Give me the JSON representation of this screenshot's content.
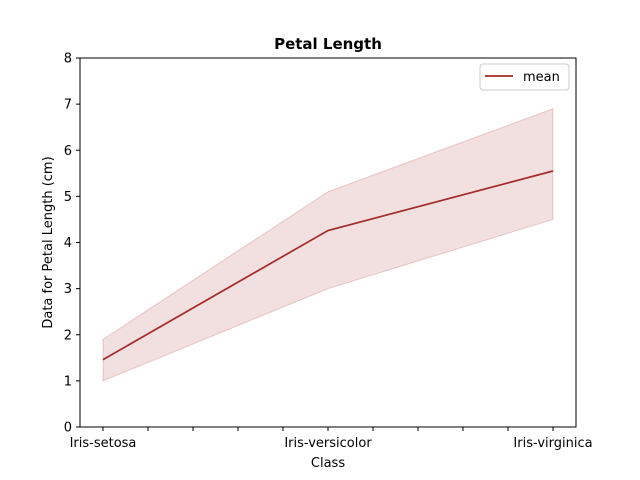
{
  "chart_data": {
    "type": "line",
    "title": "Petal Length",
    "xlabel": "Class",
    "ylabel": "Data for Petal Length (cm)",
    "categories": [
      "Iris-setosa",
      "Iris-versicolor",
      "Iris-virginica"
    ],
    "series": [
      {
        "name": "mean",
        "values": [
          1.46,
          4.26,
          5.55
        ],
        "color": "#a52a2a"
      }
    ],
    "band": {
      "lower": [
        1.0,
        3.0,
        4.5
      ],
      "upper": [
        1.9,
        5.1,
        6.9
      ],
      "color": "#a52a2a",
      "opacity": 0.15
    },
    "ylim": [
      0,
      8
    ],
    "yticks": [
      "0",
      "1",
      "2",
      "3",
      "4",
      "5",
      "6",
      "7",
      "8"
    ],
    "minor_xticks": 11,
    "legend_position": "upper-right",
    "grid": false
  }
}
